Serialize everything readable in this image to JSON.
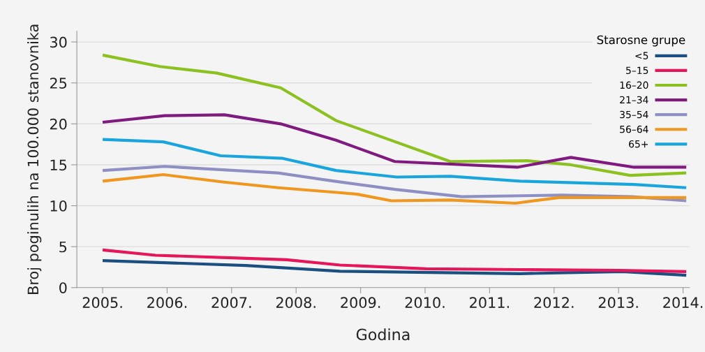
{
  "chart_data": {
    "type": "line",
    "xlabel": "Godina",
    "ylabel": "Broj poginulih na 100.000 stanovnika",
    "legend_title": "Starosne grupe",
    "xlim": [
      2004.6,
      2014.1
    ],
    "ylim": [
      0,
      31.3
    ],
    "xticks": [
      {
        "value": 2005,
        "label": "2005."
      },
      {
        "value": 2006,
        "label": "2006."
      },
      {
        "value": 2007,
        "label": "2007."
      },
      {
        "value": 2008,
        "label": "2008."
      },
      {
        "value": 2009,
        "label": "2009."
      },
      {
        "value": 2010,
        "label": "2010."
      },
      {
        "value": 2011,
        "label": "2011."
      },
      {
        "value": 2012,
        "label": "2012."
      },
      {
        "value": 2013,
        "label": "2013."
      },
      {
        "value": 2014,
        "label": "2014."
      }
    ],
    "yticks": [
      0,
      5,
      10,
      15,
      20,
      25,
      30
    ],
    "grid": "y",
    "legend": "top right",
    "marker": "none",
    "line_style": "solid",
    "series": [
      {
        "name": "<5",
        "color": "#1a4f7f",
        "x": [
          2005,
          2007.22,
          2008.68,
          2011.47,
          2013.06,
          2014.05
        ],
        "values": [
          3.3,
          2.7,
          2.0,
          1.7,
          1.95,
          1.5
        ]
      },
      {
        "name": "5–15",
        "color": "#e5175a",
        "x": [
          2005,
          2005.82,
          2007.15,
          2007.85,
          2008.68,
          2010.02,
          2011.47,
          2013.0,
          2014.05
        ],
        "values": [
          4.6,
          3.95,
          3.6,
          3.4,
          2.75,
          2.3,
          2.2,
          2.1,
          1.95
        ]
      },
      {
        "name": "16–20",
        "color": "#8cc121",
        "x": [
          2005,
          2005.89,
          2006.77,
          2007.76,
          2008.62,
          2010.39,
          2011.58,
          2012.26,
          2013.18,
          2014.05
        ],
        "values": [
          28.4,
          27.0,
          26.2,
          24.4,
          20.4,
          15.4,
          15.5,
          15.0,
          13.7,
          14.0
        ]
      },
      {
        "name": "21–34",
        "color": "#7f1a7f",
        "x": [
          2005,
          2005.96,
          2006.89,
          2007.76,
          2008.62,
          2009.53,
          2011.43,
          2012.26,
          2013.24,
          2014.05
        ],
        "values": [
          20.2,
          21.0,
          21.1,
          20.0,
          18.0,
          15.4,
          14.7,
          15.9,
          14.7,
          14.7
        ]
      },
      {
        "name": "35–54",
        "color": "#8e8fc2",
        "x": [
          2005,
          2005.96,
          2007.72,
          2008.59,
          2009.53,
          2010.57,
          2012.12,
          2013.21,
          2014.05
        ],
        "values": [
          14.3,
          14.8,
          14.0,
          13.0,
          12.0,
          11.1,
          11.3,
          11.1,
          10.6
        ]
      },
      {
        "name": "56–64",
        "color": "#f0971f",
        "x": [
          2005,
          2005.94,
          2006.86,
          2007.72,
          2008.66,
          2008.95,
          2009.48,
          2010.39,
          2011.4,
          2012.08,
          2014.05
        ],
        "values": [
          13.0,
          13.8,
          12.9,
          12.2,
          11.6,
          11.4,
          10.6,
          10.7,
          10.3,
          11.0,
          11.0
        ]
      },
      {
        "name": "65+",
        "color": "#1aa6dc",
        "x": [
          2005,
          2005.94,
          2006.83,
          2007.78,
          2008.62,
          2009.56,
          2010.39,
          2011.47,
          2013.24,
          2014.05
        ],
        "values": [
          18.1,
          17.8,
          16.1,
          15.8,
          14.3,
          13.5,
          13.6,
          13.0,
          12.6,
          12.2
        ]
      }
    ]
  }
}
